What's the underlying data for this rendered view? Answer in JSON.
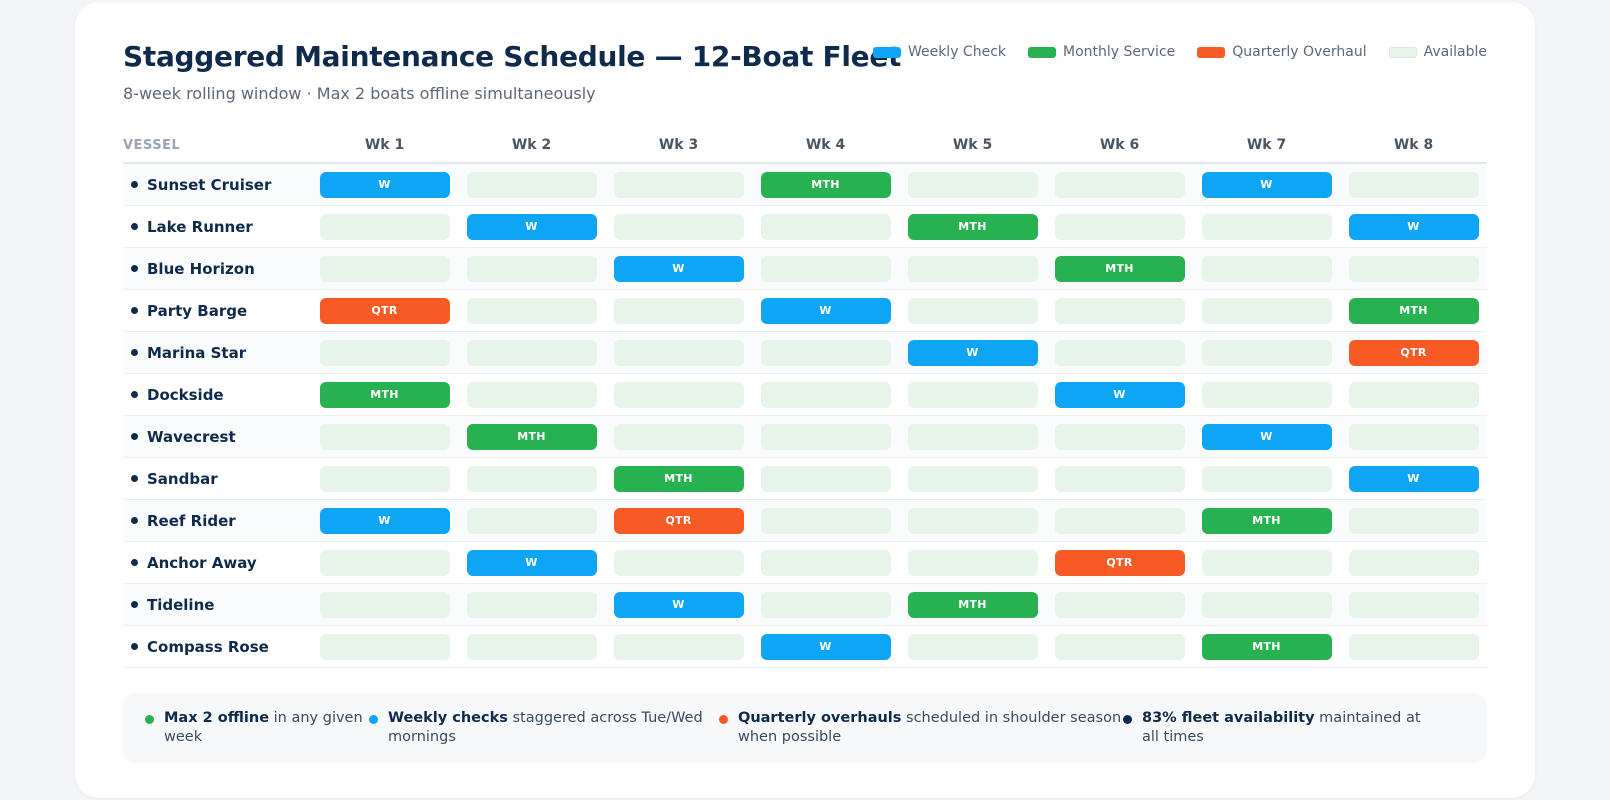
{
  "title": "Staggered Maintenance Schedule — 12-Boat Fleet",
  "subtitle": "8-week rolling window · Max 2 boats offline simultaneously",
  "legend": [
    {
      "label": "Weekly Check",
      "color": "#0ea5f5"
    },
    {
      "label": "Monthly Service",
      "color": "#27b151"
    },
    {
      "label": "Quarterly Overhaul",
      "color": "#f75a25"
    },
    {
      "label": "Available",
      "color": "#e6f4e9"
    }
  ],
  "table": {
    "vessel_header": "VESSEL",
    "weeks": [
      "Wk 1",
      "Wk 2",
      "Wk 3",
      "Wk 4",
      "Wk 5",
      "Wk 6",
      "Wk 7",
      "Wk 8"
    ],
    "rows": [
      {
        "vessel": "Sunset Cruiser",
        "cells": [
          "W",
          "",
          "",
          "MTH",
          "",
          "",
          "W",
          ""
        ]
      },
      {
        "vessel": "Lake Runner",
        "cells": [
          "",
          "W",
          "",
          "",
          "MTH",
          "",
          "",
          "W"
        ]
      },
      {
        "vessel": "Blue Horizon",
        "cells": [
          "",
          "",
          "W",
          "",
          "",
          "MTH",
          "",
          ""
        ]
      },
      {
        "vessel": "Party Barge",
        "cells": [
          "QTR",
          "",
          "",
          "W",
          "",
          "",
          "",
          "MTH"
        ]
      },
      {
        "vessel": "Marina Star",
        "cells": [
          "",
          "",
          "",
          "",
          "W",
          "",
          "",
          "QTR"
        ]
      },
      {
        "vessel": "Dockside",
        "cells": [
          "MTH",
          "",
          "",
          "",
          "",
          "W",
          "",
          ""
        ]
      },
      {
        "vessel": "Wavecrest",
        "cells": [
          "",
          "MTH",
          "",
          "",
          "",
          "",
          "W",
          ""
        ]
      },
      {
        "vessel": "Sandbar",
        "cells": [
          "",
          "",
          "MTH",
          "",
          "",
          "",
          "",
          "W"
        ]
      },
      {
        "vessel": "Reef Rider",
        "cells": [
          "W",
          "",
          "QTR",
          "",
          "",
          "",
          "MTH",
          ""
        ]
      },
      {
        "vessel": "Anchor Away",
        "cells": [
          "",
          "W",
          "",
          "",
          "",
          "QTR",
          "",
          ""
        ]
      },
      {
        "vessel": "Tideline",
        "cells": [
          "",
          "",
          "W",
          "",
          "MTH",
          "",
          "",
          ""
        ]
      },
      {
        "vessel": "Compass Rose",
        "cells": [
          "",
          "",
          "",
          "W",
          "",
          "",
          "MTH",
          ""
        ]
      }
    ]
  },
  "notes": [
    {
      "bold": "Max 2 offline",
      "text": " in any given week",
      "color": "#27b151"
    },
    {
      "bold": "Weekly checks",
      "text": " staggered across Tue/Wed mornings",
      "color": "#0ea5f5"
    },
    {
      "bold": "Quarterly overhauls",
      "text": " scheduled in shoulder season when possible",
      "color": "#f75a25"
    },
    {
      "bold": "83% fleet availability",
      "text": " maintained at all times",
      "color": "#0f2a4a"
    }
  ]
}
